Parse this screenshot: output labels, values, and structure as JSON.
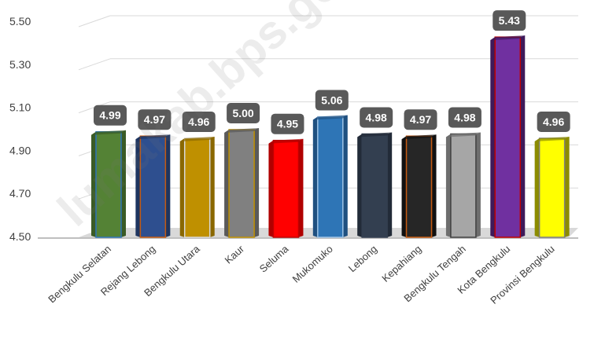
{
  "chart_data": {
    "type": "bar",
    "categories": [
      "Bengkulu Selatan",
      "Rejang Lebong",
      "Bengkulu Utara",
      "Kaur",
      "Seluma",
      "Mukomuko",
      "Lebong",
      "Kepahiang",
      "Bengkulu Tengah",
      "Kota Bengkulu",
      "Provinsi Bengkulu"
    ],
    "values": [
      4.99,
      4.97,
      4.96,
      5.0,
      4.95,
      5.06,
      4.98,
      4.97,
      4.98,
      5.43,
      4.96
    ],
    "value_labels": [
      "4.99",
      "4.97",
      "4.96",
      "5.00",
      "4.95",
      "5.06",
      "4.98",
      "4.97",
      "4.98",
      "5.43",
      "4.96"
    ],
    "ylim": [
      4.5,
      5.5
    ],
    "yticks": [
      "4.50",
      "4.70",
      "4.90",
      "5.10",
      "5.30",
      "5.50"
    ],
    "yticks_values": [
      4.5,
      4.7,
      4.9,
      5.1,
      5.3,
      5.5
    ],
    "title": "",
    "xlabel": "",
    "ylabel": "",
    "grid": true,
    "colors": [
      "#548235",
      "#2E4F8F",
      "#BF9000",
      "#808080",
      "#FF0000",
      "#2E75B6",
      "#333F50",
      "#262626",
      "#A6A6A6",
      "#7030A0",
      "#FFFF00"
    ],
    "side_colors": [
      "#3A5B25",
      "#1E3560",
      "#8A6800",
      "#5A5A5A",
      "#B00000",
      "#1F5080",
      "#222B38",
      "#111111",
      "#6E6E6E",
      "#3E1A5A",
      "#8C8C00"
    ],
    "border_colors": [
      "#2E75B6",
      "#C55A11",
      "#D9D9D9",
      "#BF9000",
      "#C00000",
      "#9DC3E6",
      "#333F50",
      "#C55A11",
      "#404040",
      "#C00000",
      "#7F7F7F"
    ]
  },
  "watermark": "lumakab.bps.go.id"
}
